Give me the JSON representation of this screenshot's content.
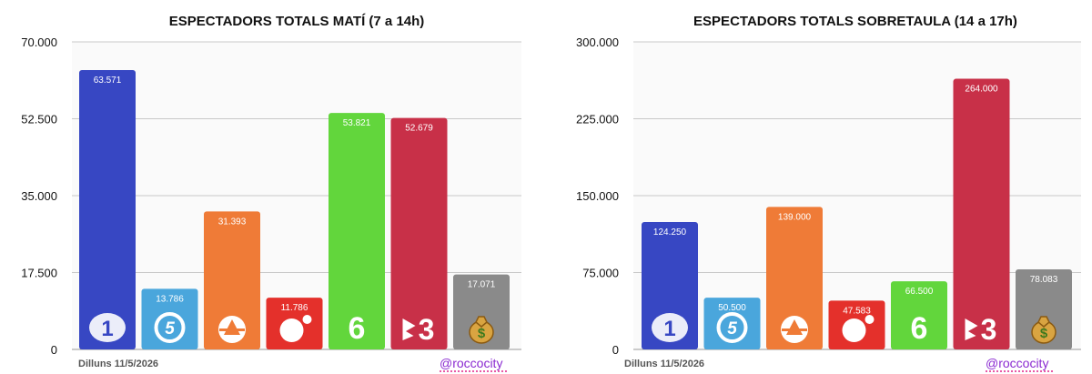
{
  "chart_data": [
    {
      "type": "bar",
      "title": "ESPECTADORS TOTALS MATÍ (7 a 14h)",
      "categories": [
        "La 1",
        "Telecinco",
        "Antena 3",
        "Cuatro",
        "laSexta",
        "TV3",
        "Resta"
      ],
      "values": [
        63571,
        13786,
        31393,
        11786,
        53821,
        52679,
        17071
      ],
      "value_labels": [
        "63.571",
        "13.786",
        "31.393",
        "11.786",
        "53.821",
        "52.679",
        "17.071"
      ],
      "ylim": [
        0,
        70000
      ],
      "yticks": [
        0,
        17500,
        35000,
        52500,
        70000
      ],
      "ytick_labels": [
        "0",
        "17.500",
        "35.000",
        "52.500",
        "70.000"
      ],
      "grid": true,
      "footer_date": "Dilluns 11/5/2026",
      "footer_handle": "@roccocity"
    },
    {
      "type": "bar",
      "title": "ESPECTADORS TOTALS SOBRETAULA (14 a 17h)",
      "categories": [
        "La 1",
        "Telecinco",
        "Antena 3",
        "Cuatro",
        "laSexta",
        "TV3",
        "Resta"
      ],
      "values": [
        124250,
        50500,
        139000,
        47583,
        66500,
        264000,
        78083
      ],
      "value_labels": [
        "124.250",
        "50.500",
        "139.000",
        "47.583",
        "66.500",
        "264.000",
        "78.083"
      ],
      "ylim": [
        0,
        300000
      ],
      "yticks": [
        0,
        75000,
        150000,
        225000,
        300000
      ],
      "ytick_labels": [
        "0",
        "75.000",
        "150.000",
        "225.000",
        "300.000"
      ],
      "grid": true,
      "footer_date": "Dilluns 11/5/2026",
      "footer_handle": "@roccocity"
    }
  ],
  "bar_colors": [
    "#3747c3",
    "#4aa6dc",
    "#ef7b37",
    "#e4302b",
    "#62d63c",
    "#c83048",
    "#8a8a8a"
  ],
  "channel_icons": [
    "la1-logo-icon",
    "telecinco-logo-icon",
    "antena3-logo-icon",
    "cuatro-logo-icon",
    "lasexta-logo-icon",
    "tv3-logo-icon",
    "money-bag-icon"
  ]
}
